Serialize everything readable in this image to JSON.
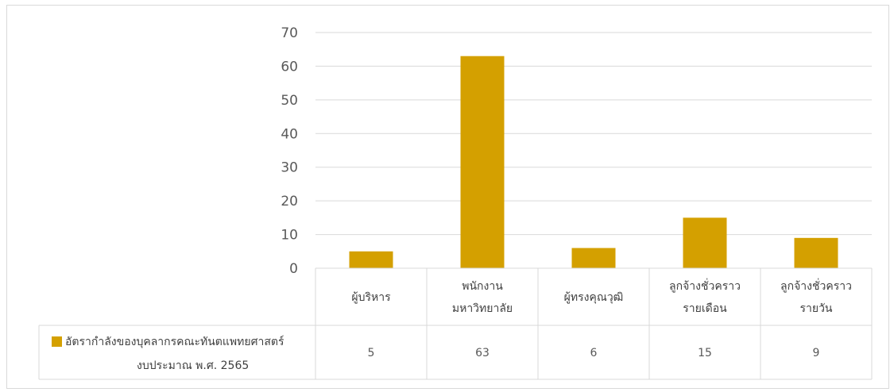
{
  "chart_data": {
    "type": "bar",
    "series": [
      {
        "name": "อัตรากำลังของบุคลากรคณะทันตแพทยศาสตร์ งบประมาณ พ.ศ. 2565",
        "name_lines": [
          "อัตรากำลังของบุคลากรคณะทันตแพทยศาสตร์",
          "งบประมาณ พ.ศ. 2565"
        ],
        "values": [
          5,
          63,
          6,
          15,
          9
        ]
      }
    ],
    "categories": [
      [
        "ผู้บริหาร"
      ],
      [
        "พนักงาน",
        "มหาวิทยาลัย"
      ],
      [
        "ผู้ทรงคุณวุฒิ"
      ],
      [
        "ลูกจ้างชั่วคราว",
        "รายเดือน"
      ],
      [
        "ลูกจ้างชั่วคราว",
        "รายวัน"
      ]
    ],
    "ylim": [
      0,
      70
    ],
    "yticks": [
      0,
      10,
      20,
      30,
      40,
      50,
      60,
      70
    ],
    "grid": true,
    "data_table": true,
    "colors": {
      "bar": "#D4A000",
      "grid": "#d9d9d9",
      "text": "#595959"
    }
  }
}
